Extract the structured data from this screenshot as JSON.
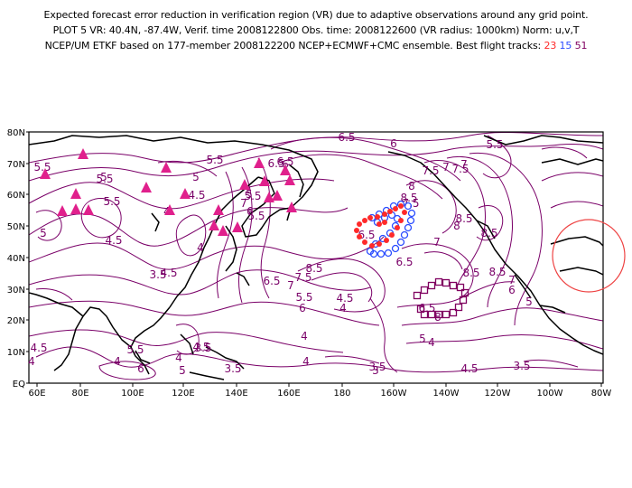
{
  "header": {
    "line1": "Expected forecast error reduction in verification region (VR) due to adaptive observations around any grid point.",
    "line2": "PLOT 5 VR: 40.4N, -87.4W, Verif. time 2008122800 Obs. time: 2008122600 (VR radius: 1000km) Norm: u,v,T",
    "line3_prefix": "NCEP/UM ETKF based on 177-member 2008122200 NCEP+ECMWF+CMC ensemble. Best flight tracks:",
    "track_a": "23",
    "track_b": "15",
    "track_c": "51"
  },
  "colors": {
    "contour": "#7a0068",
    "track_23": "#ff2a2a",
    "track_15": "#2a4cff",
    "track_51": "#800060",
    "stations": "#e0208c",
    "verification_circle": "#ee4444",
    "coast": "#000000"
  },
  "axes": {
    "x_ticks": [
      "60E",
      "80E",
      "100E",
      "120E",
      "140E",
      "160E",
      "180",
      "160W",
      "140W",
      "120W",
      "100W",
      "80W"
    ],
    "y_ticks": [
      "EQ",
      "10N",
      "20N",
      "30N",
      "40N",
      "50N",
      "60N",
      "70N",
      "80N"
    ]
  },
  "contour_labels": [
    "6.5",
    "6",
    "5.5",
    "5.5",
    "7",
    "7.5",
    "8",
    "6.5",
    "5.5",
    "5",
    "4.5",
    "4",
    "5",
    "4.5",
    "5.5",
    "5",
    "5.5",
    "7",
    "6",
    "5",
    "4",
    "3.5",
    "4.5",
    "3.5",
    "4",
    "5.5",
    "4",
    "6",
    "5",
    "4.5",
    "8.5",
    "7.5",
    "7",
    "6.5",
    "6",
    "5.5",
    "4.5",
    "4",
    "8",
    "7.5",
    "8.5",
    "6.5",
    "7",
    "8",
    "6.5",
    "5",
    "4",
    "3.5",
    "3.5",
    "4.5",
    "4",
    "3.5",
    "8.5",
    "8.5",
    "6",
    "5",
    "8.5",
    "8.5",
    "7.5",
    "7",
    "4",
    "6.5",
    "7",
    "5.5",
    "6",
    "6.5",
    "5.5",
    "4",
    "3",
    "4.5"
  ]
}
